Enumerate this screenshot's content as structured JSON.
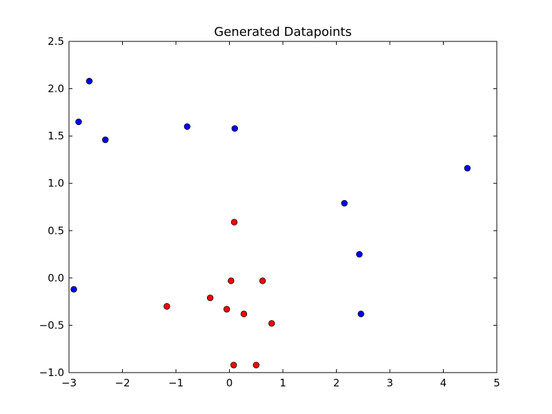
{
  "chart_data": {
    "type": "scatter",
    "title": "Generated Datapoints",
    "xlabel": "",
    "ylabel": "",
    "xlim": [
      -3,
      5
    ],
    "ylim": [
      -1.0,
      2.5
    ],
    "x_ticks": [
      -3,
      -2,
      -1,
      0,
      1,
      2,
      3,
      4,
      5
    ],
    "x_tick_labels": [
      "−3",
      "−2",
      "−1",
      "0",
      "1",
      "2",
      "3",
      "4",
      "5"
    ],
    "y_ticks": [
      -1.0,
      -0.5,
      0.0,
      0.5,
      1.0,
      1.5,
      2.0,
      2.5
    ],
    "y_tick_labels": [
      "−1.0",
      "−0.5",
      "0.0",
      "0.5",
      "1.0",
      "1.5",
      "2.0",
      "2.5"
    ],
    "grid": false,
    "legend": "none",
    "series": [
      {
        "color": "#0000ff",
        "points": [
          {
            "x": -2.62,
            "y": 2.08
          },
          {
            "x": -2.82,
            "y": 1.65
          },
          {
            "x": -2.32,
            "y": 1.46
          },
          {
            "x": -0.79,
            "y": 1.6
          },
          {
            "x": 0.1,
            "y": 1.58
          },
          {
            "x": 4.45,
            "y": 1.16
          },
          {
            "x": 2.15,
            "y": 0.79
          },
          {
            "x": 2.43,
            "y": 0.25
          },
          {
            "x": -2.91,
            "y": -0.12
          },
          {
            "x": 2.46,
            "y": -0.38
          }
        ]
      },
      {
        "color": "#ff0000",
        "points": [
          {
            "x": 0.09,
            "y": 0.59
          },
          {
            "x": 0.03,
            "y": -0.03
          },
          {
            "x": 0.62,
            "y": -0.03
          },
          {
            "x": -0.36,
            "y": -0.21
          },
          {
            "x": -1.17,
            "y": -0.3
          },
          {
            "x": -0.05,
            "y": -0.33
          },
          {
            "x": 0.27,
            "y": -0.38
          },
          {
            "x": 0.79,
            "y": -0.48
          },
          {
            "x": 0.08,
            "y": -0.92
          },
          {
            "x": 0.5,
            "y": -0.92
          }
        ]
      }
    ]
  }
}
